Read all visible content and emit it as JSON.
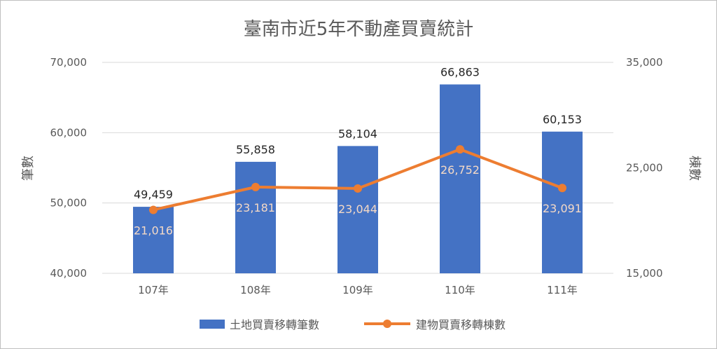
{
  "chart_data": {
    "type": "bar",
    "title": "臺南市近5年不動產買賣統計",
    "categories": [
      "107年",
      "108年",
      "109年",
      "110年",
      "111年"
    ],
    "series": [
      {
        "name": "土地買賣移轉筆數",
        "type": "bar",
        "axis": "left",
        "color": "#4472c4",
        "values": [
          49459,
          55858,
          58104,
          66863,
          60153
        ],
        "labels": [
          "49,459",
          "55,858",
          "58,104",
          "66,863",
          "60,153"
        ]
      },
      {
        "name": "建物買賣移轉棟數",
        "type": "line",
        "axis": "right",
        "color": "#ed7d31",
        "values": [
          21016,
          23181,
          23044,
          26752,
          23091
        ],
        "labels": [
          "21,016",
          "23,181",
          "23,044",
          "26,752",
          "23,091"
        ]
      }
    ],
    "ylabel": "筆數",
    "y2label": "棟數",
    "ylim": [
      40000,
      70000
    ],
    "y2lim": [
      15000,
      35000
    ],
    "yticks": [
      "40,000",
      "50,000",
      "60,000",
      "70,000"
    ],
    "y2ticks": [
      "15,000",
      "25,000",
      "35,000"
    ],
    "grid": true,
    "legend": "bottom"
  }
}
